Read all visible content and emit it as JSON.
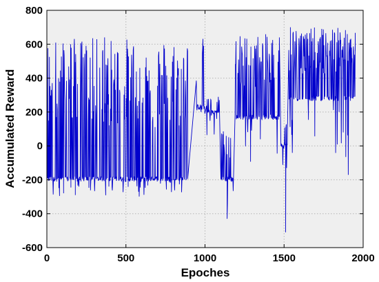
{
  "chart_data": {
    "type": "line",
    "title": "",
    "xlabel": "Epoches",
    "ylabel": "Accumulated Reward",
    "xlim": [
      0,
      2000
    ],
    "ylim": [
      -600,
      800
    ],
    "xticks": [
      0,
      500,
      1000,
      1500,
      2000
    ],
    "yticks": [
      -600,
      -400,
      -200,
      0,
      200,
      400,
      600,
      800
    ],
    "grid": true,
    "legend": "none",
    "colors": {
      "series": "#0000cc",
      "background": "#efefef",
      "grid": "#b4b4b4"
    },
    "series": [
      {
        "segments": [
          {
            "x_range": [
              0,
              890
            ],
            "baseline": -195,
            "high": 640,
            "low": -300,
            "high_fraction": 0.42
          },
          {
            "x_range": [
              945,
              1000
            ],
            "baseline": 230,
            "high": 640,
            "low": 150,
            "high_fraction": 0.4
          },
          {
            "x_range": [
              1010,
              1090
            ],
            "baseline": 200,
            "high": 300,
            "low": 60,
            "high_fraction": 0.2
          },
          {
            "x_range": [
              1100,
              1180
            ],
            "baseline": -195,
            "high": 100,
            "low": -430,
            "high_fraction": 0.3
          },
          {
            "x_range": [
              1190,
              1470
            ],
            "baseline": 170,
            "high": 660,
            "low": -200,
            "high_fraction": 0.45
          },
          {
            "x_range": [
              1480,
              1520
            ],
            "baseline": 0,
            "high": 200,
            "low": -510,
            "high_fraction": 0.2
          },
          {
            "x_range": [
              1530,
              1950
            ],
            "baseline": 280,
            "high": 700,
            "low": -200,
            "high_fraction": 0.55
          }
        ],
        "sample_points": [
          {
            "x": 0,
            "y": -195
          },
          {
            "x": 10,
            "y": 150
          },
          {
            "x": 150,
            "y": 600
          },
          {
            "x": 180,
            "y": -290
          },
          {
            "x": 365,
            "y": 640
          },
          {
            "x": 890,
            "y": -195
          },
          {
            "x": 1040,
            "y": 180
          },
          {
            "x": 1140,
            "y": -430
          },
          {
            "x": 1470,
            "y": 640
          },
          {
            "x": 1510,
            "y": -510
          },
          {
            "x": 1540,
            "y": 700
          },
          {
            "x": 1950,
            "y": 560
          }
        ]
      }
    ]
  }
}
